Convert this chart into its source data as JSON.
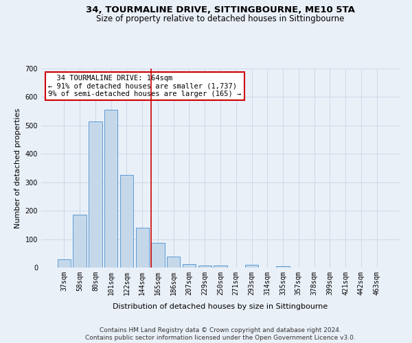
{
  "title": "34, TOURMALINE DRIVE, SITTINGBOURNE, ME10 5TA",
  "subtitle": "Size of property relative to detached houses in Sittingbourne",
  "xlabel": "Distribution of detached houses by size in Sittingbourne",
  "ylabel": "Number of detached properties",
  "footer_line1": "Contains HM Land Registry data © Crown copyright and database right 2024.",
  "footer_line2": "Contains public sector information licensed under the Open Government Licence v3.0.",
  "categories": [
    "37sqm",
    "58sqm",
    "80sqm",
    "101sqm",
    "122sqm",
    "144sqm",
    "165sqm",
    "186sqm",
    "207sqm",
    "229sqm",
    "250sqm",
    "271sqm",
    "293sqm",
    "314sqm",
    "335sqm",
    "357sqm",
    "378sqm",
    "399sqm",
    "421sqm",
    "442sqm",
    "463sqm"
  ],
  "values": [
    30,
    185,
    515,
    555,
    325,
    140,
    87,
    38,
    13,
    8,
    8,
    0,
    10,
    0,
    5,
    0,
    0,
    0,
    0,
    0,
    0
  ],
  "bar_color": "#c5d8ea",
  "bar_edge_color": "#5b9bd5",
  "highlight_line_index": 6,
  "annotation_text_line1": "34 TOURMALINE DRIVE: 164sqm",
  "annotation_text_line2": "← 91% of detached houses are smaller (1,737)",
  "annotation_text_line3": "9% of semi-detached houses are larger (165) →",
  "annotation_box_color": "#ffffff",
  "annotation_box_edge_color": "#cc0000",
  "highlight_line_color": "#cc0000",
  "ylim": [
    0,
    700
  ],
  "yticks": [
    0,
    100,
    200,
    300,
    400,
    500,
    600,
    700
  ],
  "grid_color": "#d0d8e8",
  "background_color": "#eaf0f8",
  "title_fontsize": 9.5,
  "subtitle_fontsize": 8.5,
  "axis_label_fontsize": 8,
  "tick_fontsize": 7,
  "annotation_fontsize": 7.5,
  "footer_fontsize": 6.5
}
